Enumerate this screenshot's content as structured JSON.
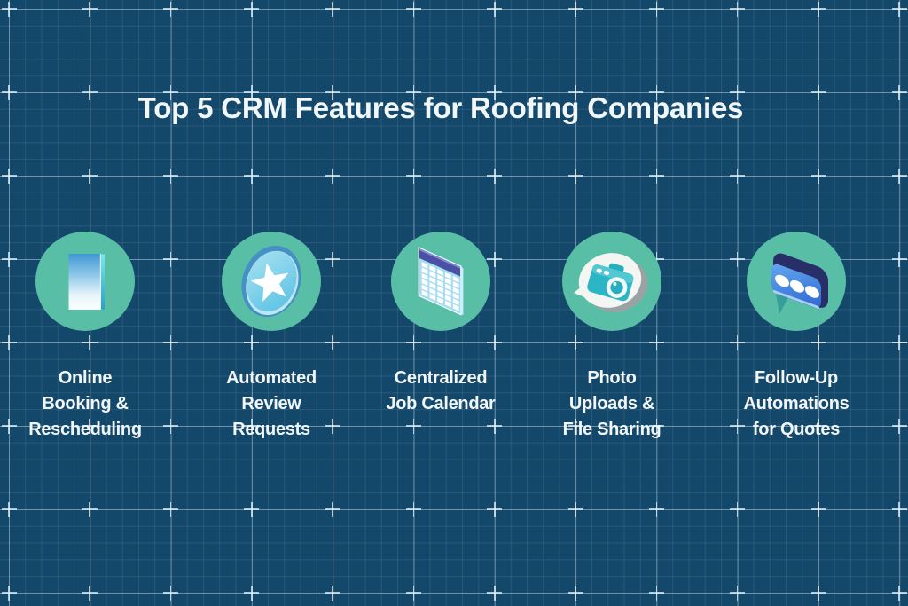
{
  "title": "Top 5 CRM Features for Roofing Companies",
  "features": [
    {
      "id": "online-booking",
      "icon": "smartphone-icon",
      "lines": [
        "Online",
        "Booking &",
        "Rescheduling"
      ]
    },
    {
      "id": "automated-reviews",
      "icon": "star-badge-icon",
      "lines": [
        "Automated",
        "Review",
        "Requests"
      ]
    },
    {
      "id": "centralized-calendar",
      "icon": "calendar-icon",
      "lines": [
        "Centralized",
        "Job Calendar"
      ]
    },
    {
      "id": "photo-uploads",
      "icon": "camera-icon",
      "lines": [
        "Photo",
        "Uploads &",
        "File Sharing"
      ]
    },
    {
      "id": "follow-up-automations",
      "icon": "chat-bubble-icon",
      "lines": [
        "Follow-Up",
        "Automations",
        "for Quotes"
      ]
    }
  ],
  "colors": {
    "background": "#14486b",
    "circle": "#58bfa6",
    "text": "#f1f6f8",
    "grid_line": "#cfe3ee",
    "icon_blue": "#4196d4",
    "icon_cyan": "#2cb5c5",
    "icon_indigo": "#4a50a3",
    "icon_navy": "#272e68",
    "icon_light_blue": "#a4dcf2",
    "icon_star_blue": "#57c0e4"
  }
}
